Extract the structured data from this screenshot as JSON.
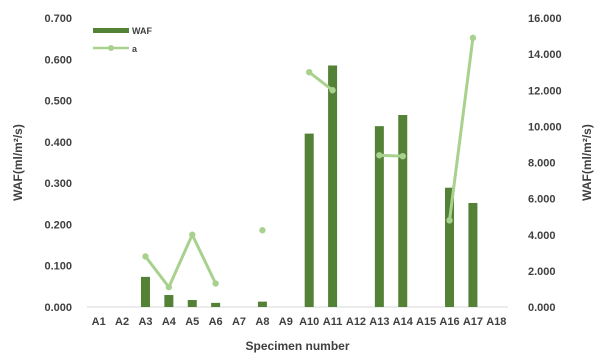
{
  "chart_data": {
    "type": "bar",
    "xlabel": "Specimen number",
    "ylabel": "WAF(ml/m²/s)",
    "y2label": "WAF(ml/m²/s)",
    "categories": [
      "A1",
      "A2",
      "A3",
      "A4",
      "A5",
      "A6",
      "A7",
      "A8",
      "A9",
      "A10",
      "A11",
      "A12",
      "A13",
      "A14",
      "A15",
      "A16",
      "A17",
      "A18"
    ],
    "ylim": [
      0,
      0.7
    ],
    "y2lim": [
      0,
      16
    ],
    "yticks": [
      "0.000",
      "0.100",
      "0.200",
      "0.300",
      "0.400",
      "0.500",
      "0.600",
      "0.700"
    ],
    "y2ticks": [
      "0.000",
      "2.000",
      "4.000",
      "6.000",
      "8.000",
      "10.000",
      "12.000",
      "14.000",
      "16.000"
    ],
    "grid": false,
    "legend_position": "top-left",
    "series": [
      {
        "name": "WAF",
        "type": "bar",
        "axis": "left",
        "color": "#538135",
        "values": [
          0,
          0,
          0.073,
          0.029,
          0.017,
          0.01,
          0,
          0.013,
          0,
          0.42,
          0.585,
          0,
          0.438,
          0.465,
          0,
          0.289,
          0.252,
          0
        ]
      },
      {
        "name": "a",
        "type": "line",
        "axis": "right",
        "color": "#a9d18e",
        "segments": [
          [
            [
              "A3",
              2.8
            ],
            [
              "A4",
              1.1
            ],
            [
              "A5",
              4.0
            ],
            [
              "A6",
              1.3
            ]
          ],
          [
            [
              "A8",
              4.25
            ]
          ],
          [
            [
              "A10",
              13.0
            ],
            [
              "A11",
              12.0
            ]
          ],
          [
            [
              "A13",
              8.4
            ],
            [
              "A14",
              8.35
            ]
          ],
          [
            [
              "A16",
              4.8
            ],
            [
              "A17",
              14.9
            ]
          ]
        ]
      }
    ]
  }
}
